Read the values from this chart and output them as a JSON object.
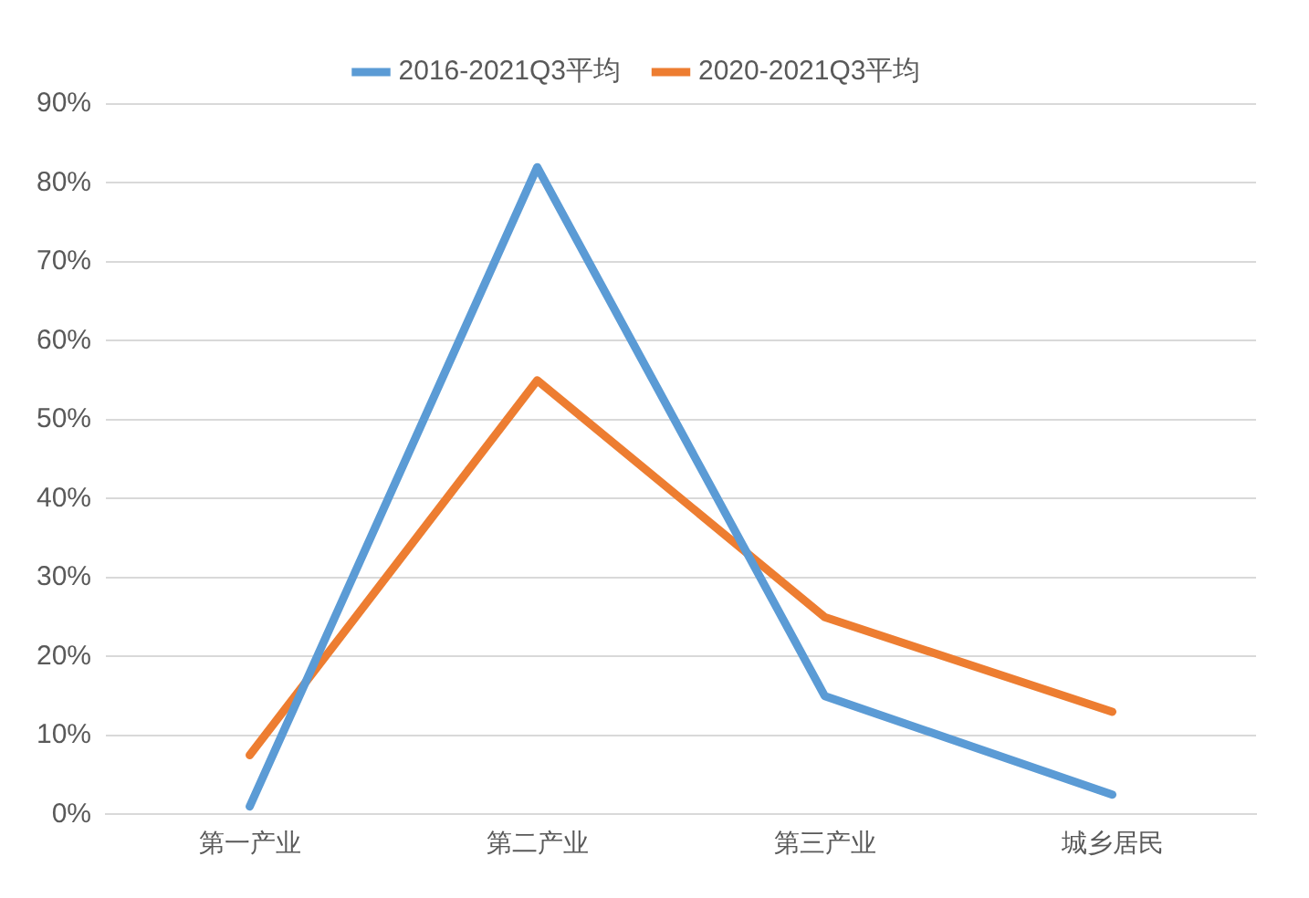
{
  "chart_data": {
    "type": "line",
    "categories": [
      "第一产业",
      "第二产业",
      "第三产业",
      "城乡居民"
    ],
    "series": [
      {
        "name": "2016-2021Q3平均",
        "color": "#5b9bd5",
        "values": [
          1,
          82,
          15,
          2.5
        ]
      },
      {
        "name": "2020-2021Q3平均",
        "color": "#ed7d31",
        "values": [
          7.5,
          55,
          25,
          13
        ]
      }
    ],
    "ylim": [
      0,
      90
    ],
    "yticks": [
      {
        "value": 0,
        "label": "0%"
      },
      {
        "value": 10,
        "label": "10%"
      },
      {
        "value": 20,
        "label": "20%"
      },
      {
        "value": 30,
        "label": "30%"
      },
      {
        "value": 40,
        "label": "40%"
      },
      {
        "value": 50,
        "label": "50%"
      },
      {
        "value": 60,
        "label": "60%"
      },
      {
        "value": 70,
        "label": "70%"
      },
      {
        "value": 80,
        "label": "80%"
      },
      {
        "value": 90,
        "label": "90%"
      }
    ],
    "grid": "y",
    "legend": "top",
    "marker": "none",
    "line_style": "solid"
  }
}
